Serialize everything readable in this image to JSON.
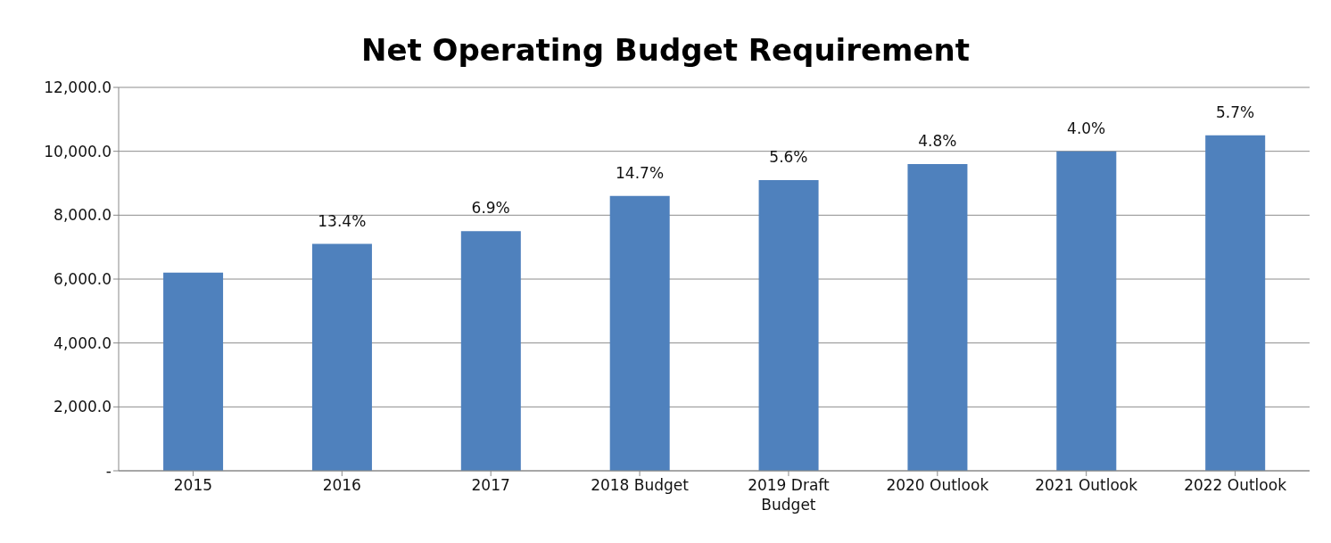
{
  "chart_data": {
    "type": "bar",
    "title": "Net Operating Budget Requirement",
    "categories": [
      "2015",
      "2016",
      "2017",
      "2018 Budget",
      "2019 Draft Budget",
      "2020 Outlook",
      "2021 Outlook",
      "2022 Outlook"
    ],
    "values": [
      6200,
      7100,
      7500,
      8600,
      9100,
      9600,
      10000,
      10500
    ],
    "annotations": [
      {
        "text": "13.4%",
        "x": "2016",
        "y": 7100
      },
      {
        "text": "6.9%",
        "x": "2017",
        "y": 7500
      },
      {
        "text": "14.7%",
        "x": "2018 Budget",
        "y": 8600
      },
      {
        "text": "5.6%",
        "x": "2019 Draft Budget",
        "y": 9100
      },
      {
        "text": "4.8%",
        "x": "2020 Outlook",
        "y": 9600
      },
      {
        "text": "4.0%",
        "x": "2021 Outlook",
        "y": 10000
      },
      {
        "text": "5.7%",
        "x": "2022 Outlook",
        "y": 10500
      }
    ],
    "color": "#4f81bd",
    "ylim": [
      0,
      12000
    ],
    "yticks": [
      {
        "value": 0,
        "label": "-"
      },
      {
        "value": 2000,
        "label": "2,000.0"
      },
      {
        "value": 4000,
        "label": "4,000.0"
      },
      {
        "value": 6000,
        "label": "6,000.0"
      },
      {
        "value": 8000,
        "label": "8,000.0"
      },
      {
        "value": 10000,
        "label": "10,000.0"
      },
      {
        "value": 12000,
        "label": "12,000.0"
      }
    ],
    "grid": "y",
    "legend": false
  }
}
